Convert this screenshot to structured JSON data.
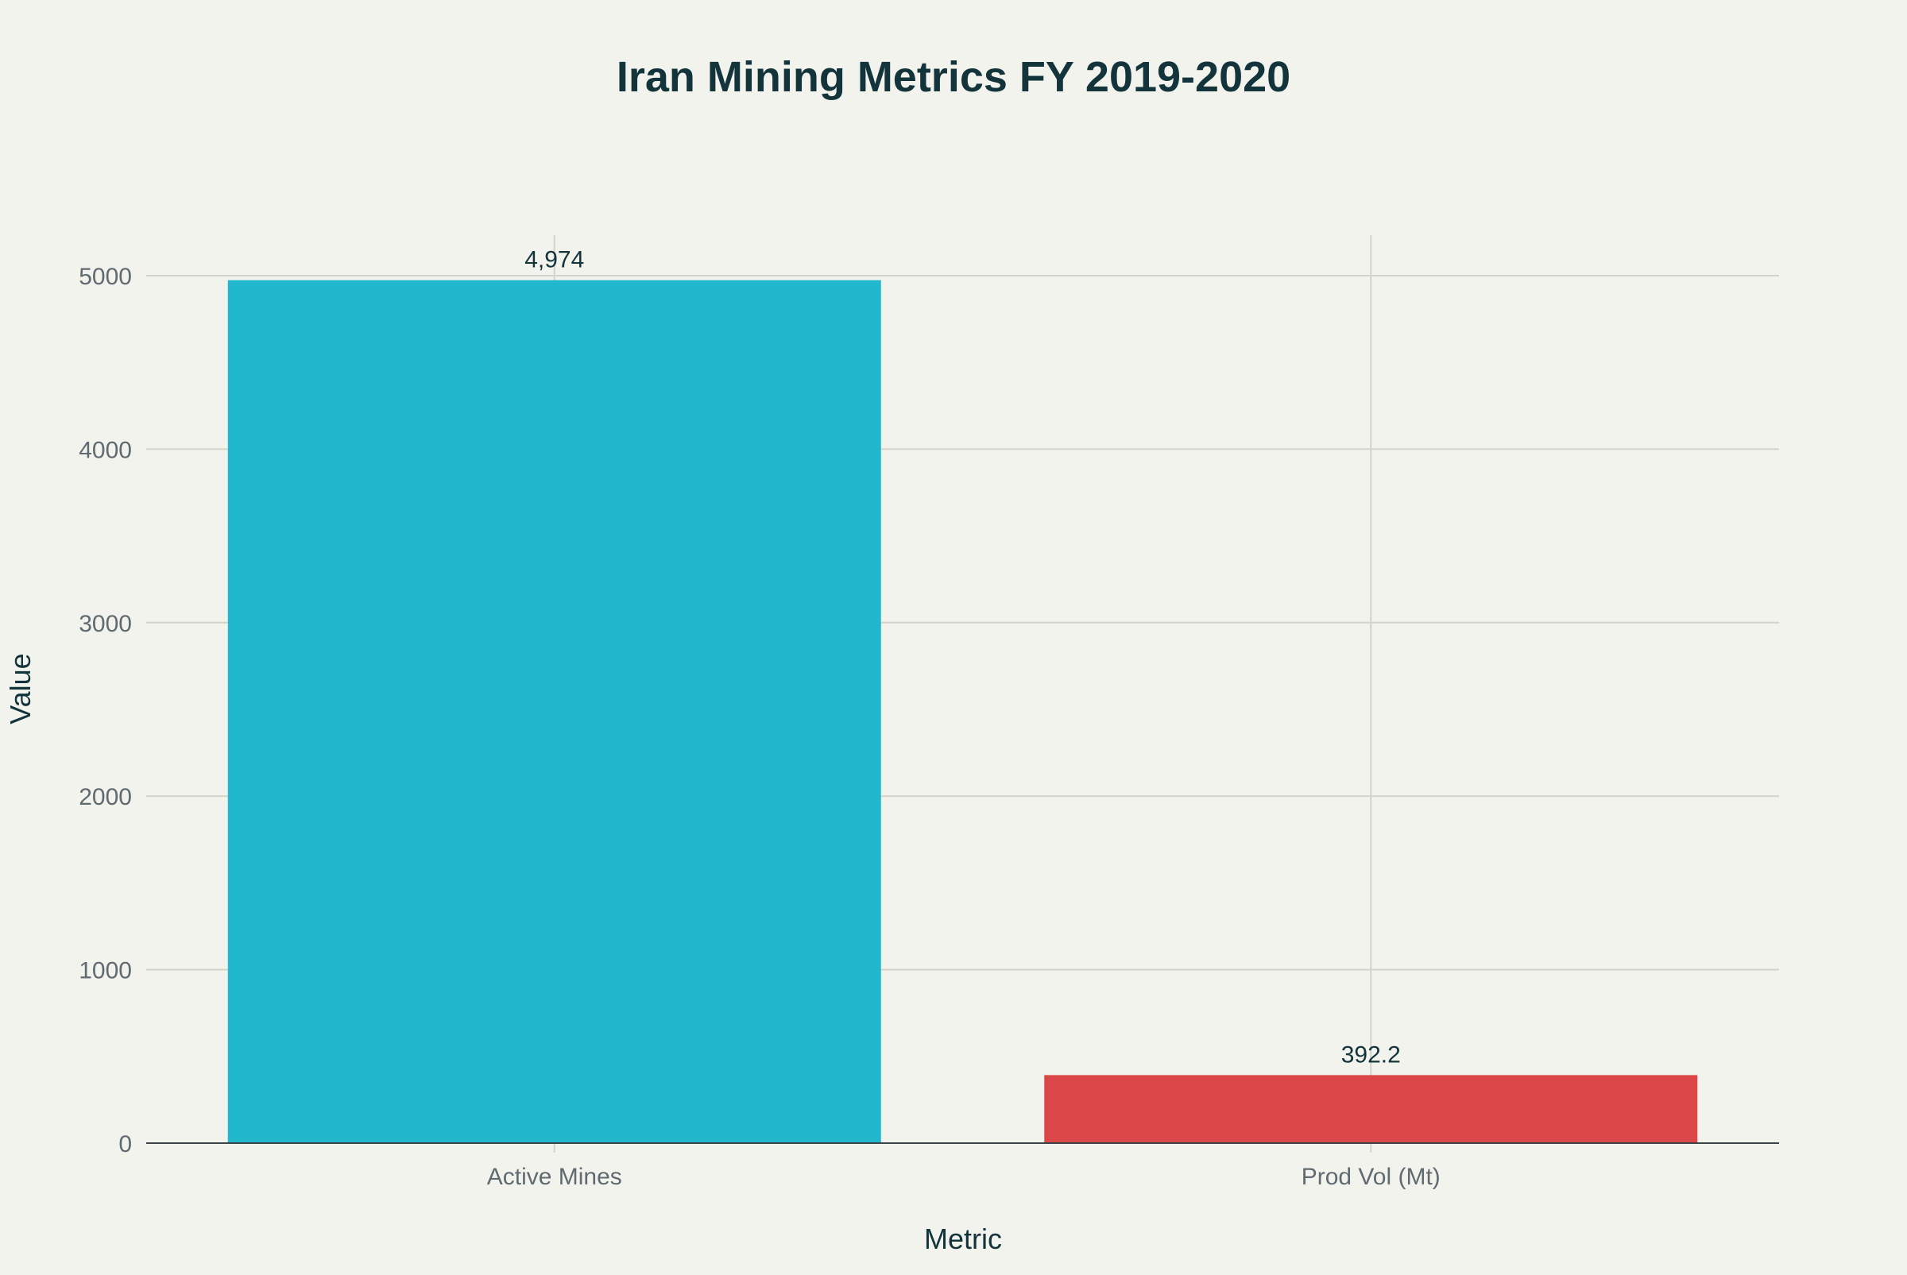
{
  "chart_data": {
    "type": "bar",
    "title": "Iran Mining Metrics FY 2019-2020",
    "xlabel": "Metric",
    "ylabel": "Value",
    "categories": [
      "Active Mines",
      "Prod Vol (Mt)"
    ],
    "values": [
      4974,
      392.2
    ],
    "data_labels": [
      "4,974",
      "392.2"
    ],
    "colors": [
      "#21b7cc",
      "#db4648"
    ],
    "ylim": [
      0,
      5250
    ],
    "yticks": [
      0,
      1000,
      2000,
      3000,
      4000,
      5000
    ],
    "ytick_labels": [
      "0",
      "1000",
      "2000",
      "3000",
      "4000",
      "5000"
    ],
    "grid": true,
    "legend": "none"
  }
}
